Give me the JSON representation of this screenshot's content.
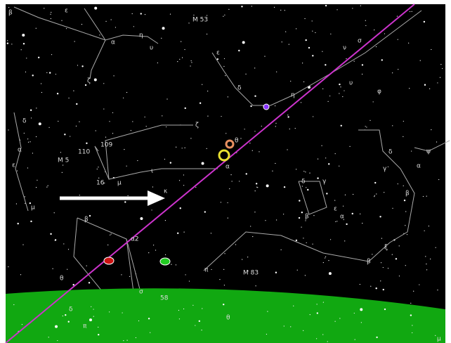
{
  "labels": [
    "β",
    "ε",
    "α",
    "η",
    "υ",
    "ζ",
    "M 53",
    "ε",
    "δ",
    "η",
    "υ",
    "ν",
    "σ",
    "φ",
    "δ",
    "α",
    "ε",
    "M 5",
    "110",
    "109",
    "ζ",
    "θ",
    "α",
    "ι",
    "16",
    "μ",
    "κ",
    "δ",
    "γ",
    "β",
    "ψ",
    "α",
    "δ",
    "γ",
    "ε",
    "β",
    "α",
    "μ",
    "β",
    "α2",
    "ξ",
    "β",
    "π",
    "M 83",
    "θ",
    "σ",
    "58",
    "θ",
    "π",
    "δ",
    "μ"
  ]
}
